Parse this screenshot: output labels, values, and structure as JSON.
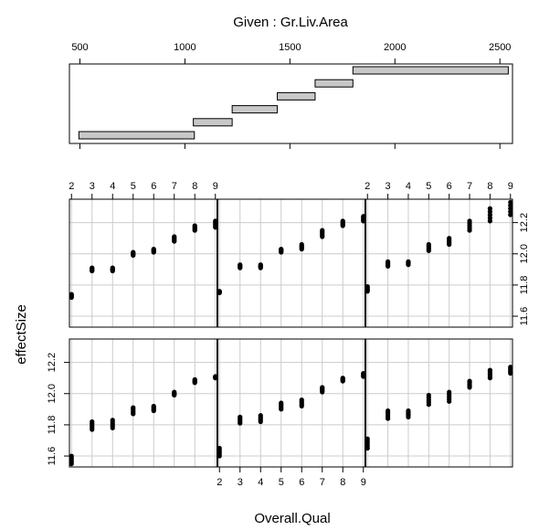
{
  "chart_data": {
    "type": "coplot",
    "given": {
      "title": "Given : Gr.Liv.Area",
      "ticks": [
        500,
        1000,
        1500,
        2000,
        2500
      ],
      "xlim": [
        450,
        2560
      ],
      "intervals": [
        [
          495,
          1045
        ],
        [
          1040,
          1225
        ],
        [
          1225,
          1440
        ],
        [
          1440,
          1620
        ],
        [
          1620,
          1800
        ],
        [
          1800,
          2540
        ]
      ]
    },
    "xlabel": "Overall.Qual",
    "ylabel": "effectSize",
    "x_ticks": [
      2,
      3,
      4,
      5,
      6,
      7,
      8,
      9
    ],
    "xlim": [
      1.9,
      9.1
    ],
    "ylim": [
      11.53,
      12.35
    ],
    "y_ticks": [
      11.6,
      11.8,
      12.0,
      12.2
    ],
    "y_tick_labels": [
      "11.6",
      "11.8",
      "12.0",
      "12.2"
    ],
    "panels": [
      {
        "row": 0,
        "col": 0,
        "points": [
          [
            2,
            11.55,
            11.6
          ],
          [
            3,
            11.77,
            11.82
          ],
          [
            4,
            11.78,
            11.83
          ],
          [
            5,
            11.87,
            11.91
          ],
          [
            6,
            11.89,
            11.92
          ],
          [
            7,
            11.99,
            12.01
          ],
          [
            8,
            12.07,
            12.09
          ],
          [
            9,
            12.1,
            12.11
          ]
        ]
      },
      {
        "row": 0,
        "col": 1,
        "points": [
          [
            2,
            11.6,
            11.65
          ],
          [
            3,
            11.81,
            11.85
          ],
          [
            4,
            11.82,
            11.86
          ],
          [
            5,
            11.9,
            11.94
          ],
          [
            6,
            11.92,
            11.96
          ],
          [
            7,
            12.01,
            12.04
          ],
          [
            8,
            12.08,
            12.1
          ],
          [
            9,
            12.11,
            12.13
          ]
        ]
      },
      {
        "row": 0,
        "col": 2,
        "points": [
          [
            2,
            11.65,
            11.71
          ],
          [
            3,
            11.84,
            11.89
          ],
          [
            4,
            11.85,
            11.89
          ],
          [
            5,
            11.93,
            11.99
          ],
          [
            6,
            11.95,
            12.01
          ],
          [
            7,
            12.04,
            12.08
          ],
          [
            8,
            12.1,
            12.15
          ],
          [
            9,
            12.13,
            12.17
          ]
        ]
      },
      {
        "row": 1,
        "col": 0,
        "points": [
          [
            2,
            11.72,
            11.74
          ],
          [
            3,
            11.89,
            11.91
          ],
          [
            4,
            11.89,
            11.91
          ],
          [
            5,
            11.99,
            12.01
          ],
          [
            6,
            12.01,
            12.03
          ],
          [
            7,
            12.08,
            12.11
          ],
          [
            8,
            12.15,
            12.18
          ],
          [
            9,
            12.17,
            12.21
          ]
        ]
      },
      {
        "row": 1,
        "col": 1,
        "points": [
          [
            2,
            11.75,
            11.76
          ],
          [
            3,
            11.91,
            11.93
          ],
          [
            4,
            11.91,
            11.93
          ],
          [
            5,
            12.01,
            12.03
          ],
          [
            6,
            12.03,
            12.06
          ],
          [
            7,
            12.11,
            12.15
          ],
          [
            8,
            12.18,
            12.21
          ],
          [
            9,
            12.21,
            12.24
          ]
        ]
      },
      {
        "row": 1,
        "col": 2,
        "points": [
          [
            2,
            11.76,
            11.79
          ],
          [
            3,
            11.92,
            11.95
          ],
          [
            4,
            11.93,
            11.95
          ],
          [
            5,
            12.02,
            12.06
          ],
          [
            6,
            12.06,
            12.1
          ],
          [
            7,
            12.15,
            12.21
          ],
          [
            8,
            12.21,
            12.29
          ],
          [
            9,
            12.25,
            12.33
          ]
        ]
      }
    ]
  }
}
